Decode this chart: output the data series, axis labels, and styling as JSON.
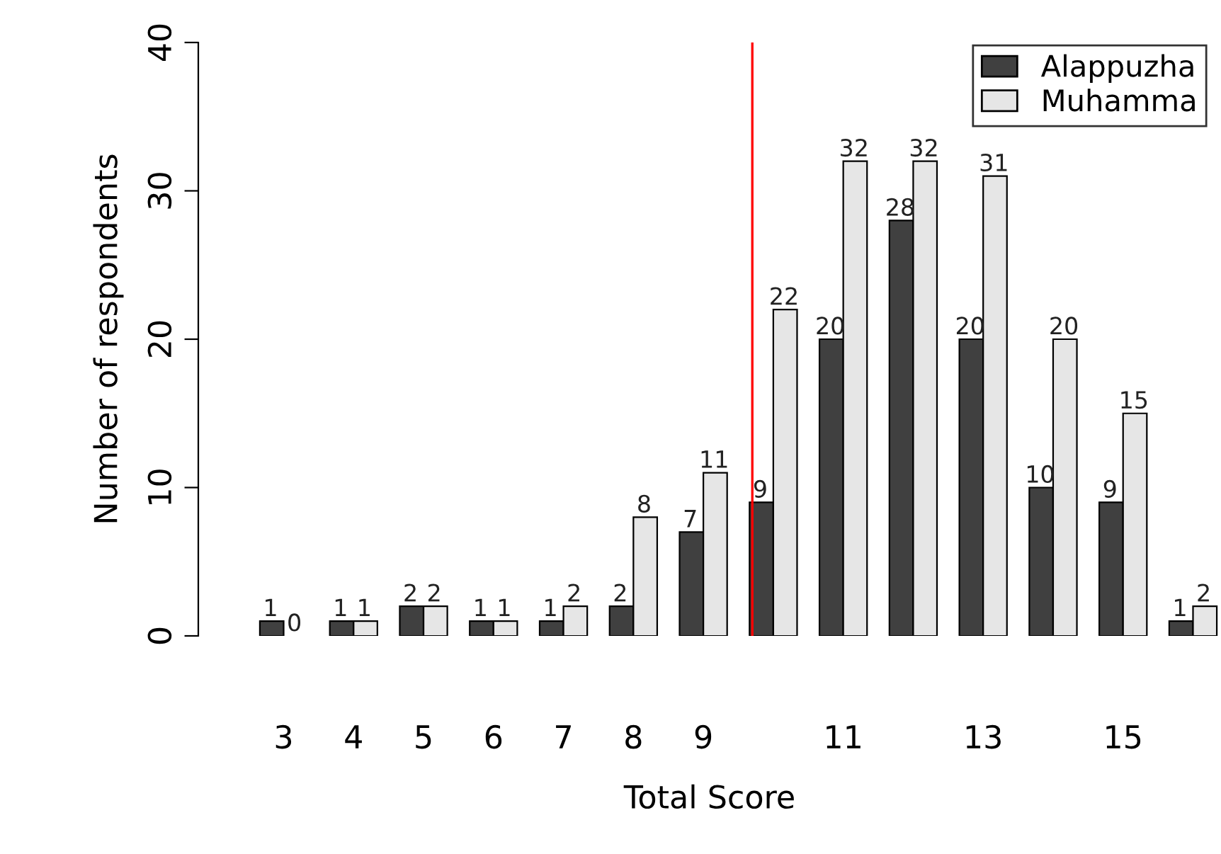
{
  "chart_data": {
    "type": "bar",
    "xlabel": "Total Score",
    "ylabel": "Number of respondents",
    "x": [
      3,
      4,
      5,
      6,
      7,
      8,
      9,
      10,
      11,
      12,
      13,
      14,
      15,
      16
    ],
    "series": [
      {
        "name": "Alappuzha",
        "color": "#404040",
        "values": [
          1,
          1,
          2,
          1,
          1,
          2,
          7,
          9,
          20,
          28,
          20,
          10,
          9,
          1
        ]
      },
      {
        "name": "Muhamma",
        "color": "#e6e6e6",
        "values": [
          0,
          1,
          2,
          1,
          2,
          8,
          11,
          22,
          32,
          32,
          31,
          20,
          15,
          2
        ]
      }
    ],
    "xlim": [
      1.78,
      16.4
    ],
    "xticks": [
      3,
      4,
      5,
      6,
      7,
      8,
      9,
      11,
      13,
      15
    ],
    "ylim": [
      0,
      40
    ],
    "yticks": [
      0,
      10,
      20,
      30,
      40
    ],
    "ref_lines": [
      {
        "axis": "x",
        "value": 9.7,
        "color": "#ff0000"
      }
    ],
    "data_labels": true,
    "legend": "top right",
    "grid": false
  }
}
